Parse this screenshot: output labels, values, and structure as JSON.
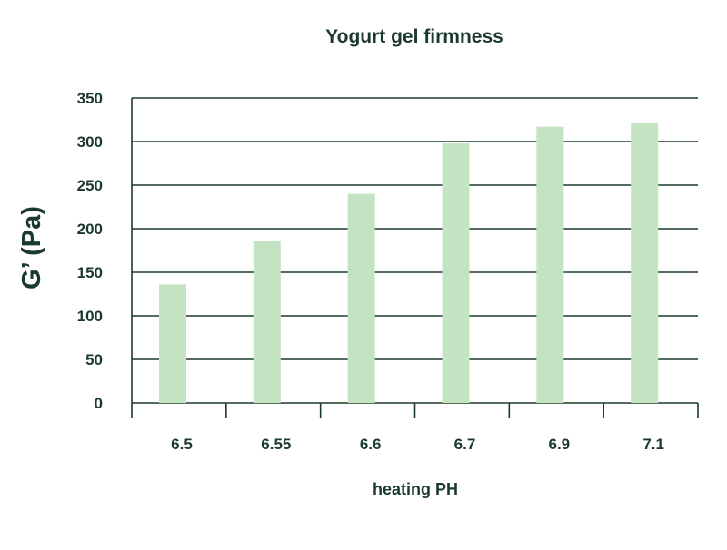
{
  "chart_data": {
    "type": "bar",
    "title": "Yogurt gel firmness",
    "xlabel": "heating PH",
    "ylabel": "G’ (Pa)",
    "categories": [
      "6.5",
      "6.55",
      "6.6",
      "6.7",
      "6.9",
      "7.1"
    ],
    "values": [
      136,
      186,
      240,
      298,
      317,
      322
    ],
    "ylim": [
      0,
      350
    ],
    "yticks": [
      "0",
      "50",
      "100",
      "150",
      "200",
      "250",
      "300",
      "350"
    ],
    "grid": true,
    "bar_color": "#c4e3c2",
    "line_color": "#1b3a2b"
  }
}
